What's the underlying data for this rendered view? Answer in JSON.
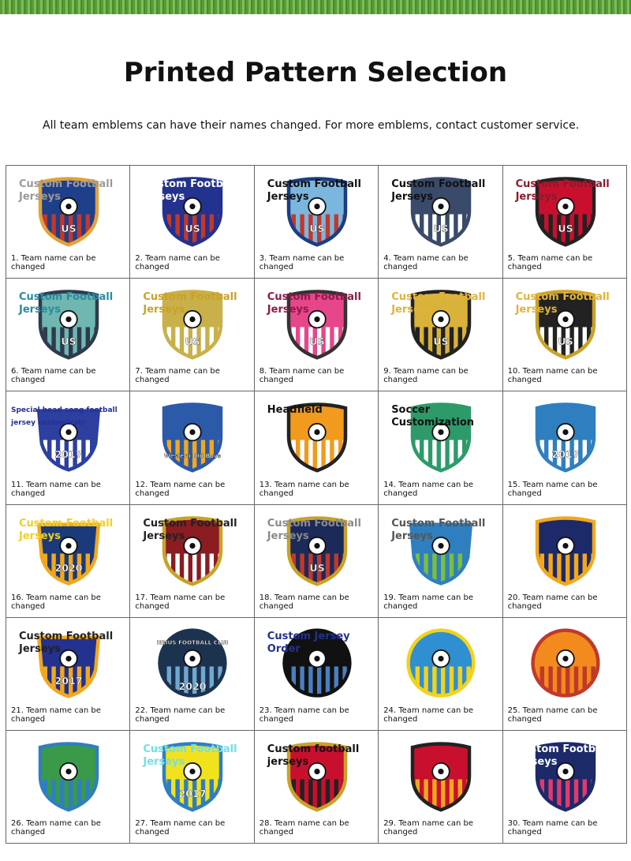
{
  "header": {
    "title": "Printed Pattern Selection",
    "subtitle": "All team emblems can have their names changed. For more emblems, contact customer service."
  },
  "cells": [
    {
      "caption": "1. Team name can be changed",
      "overlay": "Custom Football Jerseys",
      "overlay_color": "#9a9a9a",
      "shape": "shield",
      "colors": [
        "#1e3f8a",
        "#c0392b"
      ],
      "rim": "#e2a33a",
      "emblem": [
        "US"
      ]
    },
    {
      "caption": "2. Team name can be changed",
      "overlay": "Custom Football Jerseys",
      "overlay_color": "#ffffff",
      "shape": "shield",
      "colors": [
        "#23318f",
        "#c0392b"
      ],
      "rim": "#23318f",
      "emblem": [
        "US"
      ]
    },
    {
      "caption": "3. Team name can be changed",
      "overlay": "Custom Football Jerseys",
      "overlay_color": "#111111",
      "shape": "shield",
      "colors": [
        "#7bb6de",
        "#c0392b"
      ],
      "rim": "#1c3d80",
      "emblem": [
        "US"
      ]
    },
    {
      "caption": "4. Team name can be changed",
      "overlay": "Custom Football Jerseys",
      "overlay_color": "#111111",
      "shape": "shield",
      "colors": [
        "#3a4a6a",
        "#ffffff"
      ],
      "rim": "#3a4a6a",
      "emblem": [
        "US"
      ]
    },
    {
      "caption": "5. Team name can be changed",
      "overlay": "Custom Football Jerseys",
      "overlay_color": "#8b1a2a",
      "shape": "shield",
      "colors": [
        "#c8102e",
        "#222222"
      ],
      "rim": "#222222",
      "emblem": [
        "US"
      ]
    },
    {
      "caption": "6. Team name can be changed",
      "overlay": "Custom Football Jerseys",
      "overlay_color": "#2a8aa0",
      "shape": "shield",
      "colors": [
        "#6fb7b0",
        "#2e3b4e"
      ],
      "rim": "#2e3b4e",
      "emblem": [
        "US"
      ]
    },
    {
      "caption": "7. Team name can be changed",
      "overlay": "Custom Football Jerseys",
      "overlay_color": "#c9a227",
      "shape": "shield",
      "colors": [
        "#c9b04a",
        "#ffffff"
      ],
      "rim": "#c9b04a",
      "emblem": [
        "US"
      ]
    },
    {
      "caption": "8. Team name can be changed",
      "overlay": "Custom Football Jerseys",
      "overlay_color": "#8b1a4a",
      "shape": "shield",
      "colors": [
        "#e8468a",
        "#ffffff"
      ],
      "rim": "#333333",
      "emblem": [
        "US"
      ]
    },
    {
      "caption": "9. Team name can be changed",
      "overlay": "Custom Football Jerseys",
      "overlay_color": "#e2b23a",
      "shape": "shield",
      "colors": [
        "#d8b23a",
        "#222222"
      ],
      "rim": "#222222",
      "emblem": [
        "US"
      ]
    },
    {
      "caption": "10. Team name can be changed",
      "overlay": "Custom Football Jerseys",
      "overlay_color": "#e2b23a",
      "shape": "shield",
      "colors": [
        "#222222",
        "#ffffff"
      ],
      "rim": "#c9a227",
      "emblem": [
        "US"
      ]
    },
    {
      "caption": "11. Team name can be changed",
      "overlay": "Special head song football jersey customizati-",
      "overlay_color": "#23318f",
      "shape": "badge",
      "colors": [
        "#2d3fa0",
        "#ffffff"
      ],
      "rim": "#2d3fa0",
      "emblem": [
        "2017"
      ]
    },
    {
      "caption": "12. Team name can be changed",
      "overlay_color": "#111111",
      "shape": "shield",
      "colors": [
        "#2b5aa8",
        "#f2a81d"
      ],
      "rim": "#2b5aa8",
      "emblem": [
        "Western Old Boys"
      ]
    },
    {
      "caption": "13. Team name can be changed",
      "overlay": "Headfield",
      "overlay_color": "#111111",
      "shape": "shield",
      "colors": [
        "#f29a1d",
        "#ffffff"
      ],
      "rim": "#222222",
      "emblem": []
    },
    {
      "caption": "14. Team name can be changed",
      "overlay": "Soccer Customization",
      "overlay_color": "#111111",
      "shape": "shield",
      "colors": [
        "#2e9a6a",
        "#ffffff"
      ],
      "rim": "#2e9a6a",
      "emblem": []
    },
    {
      "caption": "15. Team name can be changed",
      "overlay_color": "#111111",
      "shape": "shield",
      "colors": [
        "#2f7fc0",
        "#ffffff"
      ],
      "rim": "#2f7fc0",
      "emblem": [
        "2017"
      ]
    },
    {
      "caption": "16. Team name can be changed",
      "overlay": "Custom Football Jerseys",
      "overlay_color": "#f0d020",
      "shape": "badge",
      "colors": [
        "#1b3a7a",
        "#f2a81d"
      ],
      "rim": "#f2a81d",
      "emblem": [
        "2020"
      ]
    },
    {
      "caption": "17. Team name can be changed",
      "overlay": "Custom Football Jerseys",
      "overlay_color": "#222222",
      "shape": "shield",
      "colors": [
        "#8a1c22",
        "#ffffff"
      ],
      "rim": "#c9a227",
      "emblem": []
    },
    {
      "caption": "18. Team name can be changed",
      "overlay": "Custom Football Jerseys",
      "overlay_color": "#8a8a8a",
      "shape": "shield",
      "colors": [
        "#1c2a5a",
        "#c0392b"
      ],
      "rim": "#c9a227",
      "emblem": [
        "US"
      ]
    },
    {
      "caption": "19. Team name can be changed",
      "overlay": "Custom Football Jerseys",
      "overlay_color": "#555555",
      "shape": "badge",
      "colors": [
        "#2f7fc0",
        "#7bbf3a"
      ],
      "rim": "#2f7fc0",
      "emblem": []
    },
    {
      "caption": "20. Team name can be changed",
      "overlay_color": "#111111",
      "shape": "shield",
      "colors": [
        "#1c2a6a",
        "#f2a81d"
      ],
      "rim": "#f2a81d",
      "emblem": []
    },
    {
      "caption": "21. Team name can be changed",
      "overlay": "Custom Football Jerseys",
      "overlay_color": "#222222",
      "shape": "badge",
      "colors": [
        "#23318f",
        "#f2a81d"
      ],
      "rim": "#f2a81d",
      "emblem": [
        "2017"
      ]
    },
    {
      "caption": "22. Team name can be changed",
      "overlay_color": "#111111",
      "shape": "circle",
      "colors": [
        "#1c3350",
        "#6fa8d0"
      ],
      "rim": "#1c3350",
      "emblem": [
        "SIRIUS FOOTBALL CLUB",
        "2020"
      ]
    },
    {
      "caption": "23. Team name can be changed",
      "overlay": "Custom Jersey Order",
      "overlay_color": "#23318f",
      "shape": "circle",
      "colors": [
        "#111111",
        "#4a7fc0"
      ],
      "rim": "#111111",
      "emblem": []
    },
    {
      "caption": "24. Team name can be changed",
      "overlay_color": "#111111",
      "shape": "circle",
      "colors": [
        "#2f8fd0",
        "#f2d21d"
      ],
      "rim": "#f2d21d",
      "emblem": []
    },
    {
      "caption": "25. Team name can be changed",
      "overlay_color": "#111111",
      "shape": "circle",
      "colors": [
        "#f28a1d",
        "#c0392b"
      ],
      "rim": "#c0392b",
      "emblem": []
    },
    {
      "caption": "26. Team name can be changed",
      "overlay_color": "#111111",
      "shape": "shield",
      "colors": [
        "#3a9a4a",
        "#2f7fc0"
      ],
      "rim": "#2f7fc0",
      "emblem": []
    },
    {
      "caption": "27. Team name can be changed",
      "overlay": "Custom Football Jerseys",
      "overlay_color": "#6fe0e8",
      "shape": "shield",
      "colors": [
        "#f2e21d",
        "#2f7fc0"
      ],
      "rim": "#2f7fc0",
      "emblem": [
        "2017"
      ]
    },
    {
      "caption": "28. Team name can be changed",
      "overlay": "Custom football jerseys",
      "overlay_color": "#111111",
      "shape": "shield",
      "colors": [
        "#c8102e",
        "#222222"
      ],
      "rim": "#c9a227",
      "emblem": []
    },
    {
      "caption": "29. Team name can be changed",
      "overlay_color": "#111111",
      "shape": "shield",
      "colors": [
        "#c8102e",
        "#f2a81d"
      ],
      "rim": "#222222",
      "emblem": []
    },
    {
      "caption": "30. Team name can be changed",
      "overlay": "Custom Football Jerseys",
      "overlay_color": "#ffffff",
      "shape": "shield",
      "colors": [
        "#1c2a6a",
        "#e23a6a"
      ],
      "rim": "#1c2a6a",
      "emblem": []
    }
  ]
}
